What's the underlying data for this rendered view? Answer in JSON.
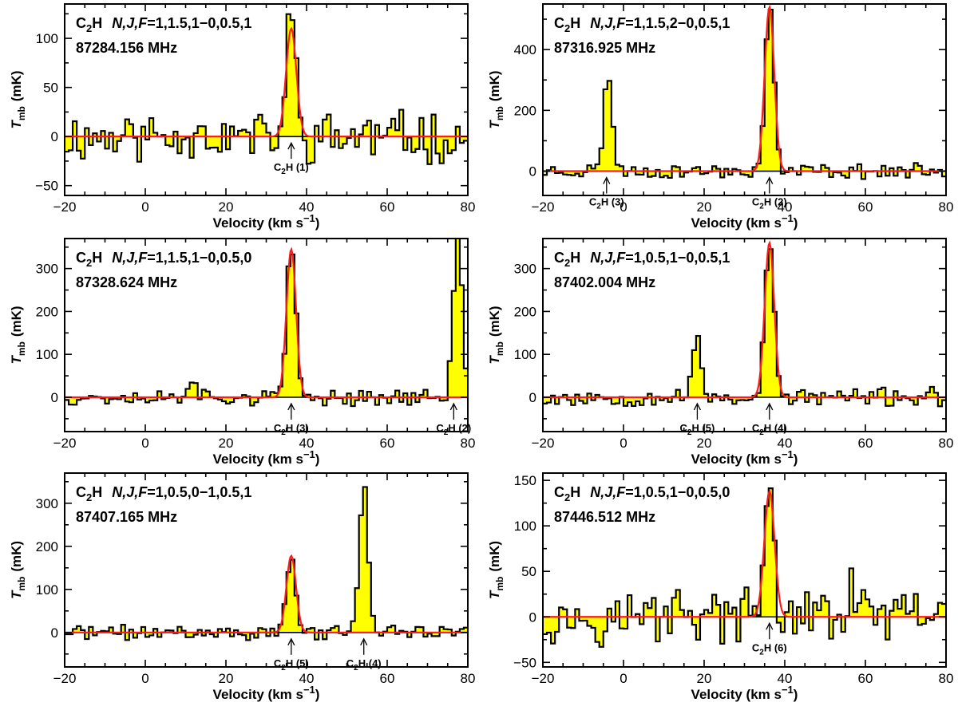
{
  "colors": {
    "fill": "#ffff00",
    "spectrum": "#000000",
    "fit": "#ff1a1a"
  },
  "chart_data": [
    {
      "type": "line",
      "title": "C2H N,J,F=1,1.5,1−0,0.5,1",
      "species": "C",
      "species_sub": "2",
      "species_tail": "H",
      "quantum_labels": "N,J,F",
      "transition": "=1,1.5,1−0,0.5,1",
      "frequency": "87284.156 MHz",
      "xlabel_main": "Velocity (km s",
      "xlabel_sup": "−1",
      "xlabel_close": ")",
      "ylabel_main": "T",
      "ylabel_sub": "mb",
      "ylabel_units": "(mK)",
      "xlim": [
        -20,
        80
      ],
      "ylim": [
        -60,
        135
      ],
      "xticks": [
        -20,
        0,
        20,
        40,
        60,
        80
      ],
      "xtick_labels": [
        "−20",
        "0",
        "20",
        "40",
        "60",
        "80"
      ],
      "yticks": [
        -50,
        0,
        50,
        100
      ],
      "ytick_labels": [
        "−50",
        "0",
        "50",
        "100"
      ],
      "channel_width": 1.0,
      "noise_amp": 22,
      "noise_seed": 11,
      "lines": [
        {
          "center": 36.2,
          "amp": 128,
          "fwhm": 2.6
        }
      ],
      "extra_features": [
        {
          "center": 13,
          "amp": 55,
          "fwhm": 0.9
        }
      ],
      "fit": {
        "center": 36.2,
        "amp": 110,
        "fwhm": 3.0
      },
      "annotations": [
        {
          "x": 36.2,
          "label_main": "C",
          "label_sub": "2",
          "label_rest": "H (1)"
        }
      ]
    },
    {
      "type": "line",
      "title": "C2H N,J,F=1,1.5,2−0,0.5,1",
      "species": "C",
      "species_sub": "2",
      "species_tail": "H",
      "quantum_labels": "N,J,F",
      "transition": "=1,1.5,2−0,0.5,1",
      "frequency": "87316.925 MHz",
      "xlabel_main": "Velocity (km s",
      "xlabel_sup": "−1",
      "xlabel_close": ")",
      "ylabel_main": "T",
      "ylabel_sub": "mb",
      "ylabel_units": "(mK)",
      "xlim": [
        -20,
        80
      ],
      "ylim": [
        -80,
        550
      ],
      "xticks": [
        -20,
        0,
        20,
        40,
        60,
        80
      ],
      "xtick_labels": [
        "−20",
        "0",
        "20",
        "40",
        "60",
        "80"
      ],
      "yticks": [
        0,
        200,
        400
      ],
      "ytick_labels": [
        "0",
        "200",
        "400"
      ],
      "channel_width": 1.0,
      "noise_amp": 20,
      "noise_seed": 23,
      "lines": [
        {
          "center": 36.2,
          "amp": 545,
          "fwhm": 2.6
        },
        {
          "center": -3.8,
          "amp": 310,
          "fwhm": 2.6
        }
      ],
      "extra_features": [],
      "fit": {
        "center": 36.2,
        "amp": 540,
        "fwhm": 2.8
      },
      "annotations": [
        {
          "x": -4.2,
          "label_main": "C",
          "label_sub": "2",
          "label_rest": "H (3)"
        },
        {
          "x": 36.2,
          "label_main": "C",
          "label_sub": "2",
          "label_rest": "H (2)"
        }
      ]
    },
    {
      "type": "line",
      "title": "C2H N,J,F=1,1.5,1−0,0.5,0",
      "species": "C",
      "species_sub": "2",
      "species_tail": "H",
      "quantum_labels": "N,J,F",
      "transition": "=1,1.5,1−0,0.5,0",
      "frequency": "87328.624 MHz",
      "xlabel_main": "Velocity (km s",
      "xlabel_sup": "−1",
      "xlabel_close": ")",
      "ylabel_main": "T",
      "ylabel_sub": "mb",
      "ylabel_units": "(mK)",
      "xlim": [
        -20,
        80
      ],
      "ylim": [
        -80,
        370
      ],
      "xticks": [
        -20,
        0,
        20,
        40,
        60,
        80
      ],
      "xtick_labels": [
        "−20",
        "0",
        "20",
        "40",
        "60",
        "80"
      ],
      "yticks": [
        0,
        100,
        200,
        300
      ],
      "ytick_labels": [
        "0",
        "100",
        "200",
        "300"
      ],
      "channel_width": 1.0,
      "noise_amp": 16,
      "noise_seed": 37,
      "lines": [
        {
          "center": 36.2,
          "amp": 350,
          "fwhm": 2.6
        },
        {
          "center": 77.5,
          "amp": 380,
          "fwhm": 2.6
        }
      ],
      "extra_features": [
        {
          "center": 11.5,
          "amp": 50,
          "fwhm": 2.5
        }
      ],
      "fit": {
        "center": 36.2,
        "amp": 345,
        "fwhm": 2.8
      },
      "annotations": [
        {
          "x": 36.2,
          "label_main": "C",
          "label_sub": "2",
          "label_rest": "H (3)"
        },
        {
          "x": 76.5,
          "label_main": "C",
          "label_sub": "2",
          "label_rest": "H (2)"
        }
      ]
    },
    {
      "type": "line",
      "title": "C2H N,J,F=1,0.5,1−0,0.5,1",
      "species": "C",
      "species_sub": "2",
      "species_tail": "H",
      "quantum_labels": "N,J,F",
      "transition": "=1,0.5,1−0,0.5,1",
      "frequency": "87402.004 MHz",
      "xlabel_main": "Velocity (km s",
      "xlabel_sup": "−1",
      "xlabel_close": ")",
      "ylabel_main": "T",
      "ylabel_sub": "mb",
      "ylabel_units": "(mK)",
      "xlim": [
        -20,
        80
      ],
      "ylim": [
        -80,
        370
      ],
      "xticks": [
        -20,
        0,
        20,
        40,
        60,
        80
      ],
      "xtick_labels": [
        "−20",
        "0",
        "20",
        "40",
        "60",
        "80"
      ],
      "yticks": [
        0,
        100,
        200,
        300
      ],
      "ytick_labels": [
        "0",
        "100",
        "200",
        "300"
      ],
      "channel_width": 1.0,
      "noise_amp": 18,
      "noise_seed": 53,
      "lines": [
        {
          "center": 36.2,
          "amp": 365,
          "fwhm": 2.6
        },
        {
          "center": 18.3,
          "amp": 140,
          "fwhm": 2.4
        }
      ],
      "extra_features": [],
      "fit": {
        "center": 36.2,
        "amp": 360,
        "fwhm": 2.8
      },
      "annotations": [
        {
          "x": 18.3,
          "label_main": "C",
          "label_sub": "2",
          "label_rest": "H (5)"
        },
        {
          "x": 36.2,
          "label_main": "C",
          "label_sub": "2",
          "label_rest": "H (4)"
        }
      ]
    },
    {
      "type": "line",
      "title": "C2H N,J,F=1,0.5,0−1,0.5,1",
      "species": "C",
      "species_sub": "2",
      "species_tail": "H",
      "quantum_labels": "N,J,F",
      "transition": "=1,0.5,0−1,0.5,1",
      "frequency": "87407.165 MHz",
      "xlabel_main": "Velocity (km s",
      "xlabel_sup": "−1",
      "xlabel_close": ")",
      "ylabel_main": "T",
      "ylabel_sub": "mb",
      "ylabel_units": "(mK)",
      "xlim": [
        -20,
        80
      ],
      "ylim": [
        -80,
        370
      ],
      "xticks": [
        -20,
        0,
        20,
        40,
        60,
        80
      ],
      "xtick_labels": [
        "−20",
        "0",
        "20",
        "40",
        "60",
        "80"
      ],
      "yticks": [
        0,
        100,
        200,
        300
      ],
      "ytick_labels": [
        "0",
        "100",
        "200",
        "300"
      ],
      "channel_width": 1.0,
      "noise_amp": 14,
      "noise_seed": 71,
      "lines": [
        {
          "center": 36.2,
          "amp": 175,
          "fwhm": 2.6
        },
        {
          "center": 54.2,
          "amp": 345,
          "fwhm": 2.6
        }
      ],
      "extra_features": [],
      "fit": {
        "center": 36.2,
        "amp": 178,
        "fwhm": 2.8
      },
      "annotations": [
        {
          "x": 36.2,
          "label_main": "C",
          "label_sub": "2",
          "label_rest": "H (5)"
        },
        {
          "x": 54.2,
          "label_main": "C",
          "label_sub": "2",
          "label_rest": "H (4)"
        }
      ]
    },
    {
      "type": "line",
      "title": "C2H N,J,F=1,0.5,1−0,0.5,0",
      "species": "C",
      "species_sub": "2",
      "species_tail": "H",
      "quantum_labels": "N,J,F",
      "transition": "=1,0.5,1−0,0.5,0",
      "frequency": "87446.512 MHz",
      "xlabel_main": "Velocity (km s",
      "xlabel_sup": "−1",
      "xlabel_close": ")",
      "ylabel_main": "T",
      "ylabel_sub": "mb",
      "ylabel_units": "(mK)",
      "xlim": [
        -20,
        80
      ],
      "ylim": [
        -55,
        158
      ],
      "xticks": [
        -20,
        0,
        20,
        40,
        60,
        80
      ],
      "xtick_labels": [
        "−20",
        "0",
        "20",
        "40",
        "60",
        "80"
      ],
      "yticks": [
        -50,
        0,
        50,
        100,
        150
      ],
      "ytick_labels": [
        "−50",
        "0",
        "50",
        "100",
        "150"
      ],
      "channel_width": 1.0,
      "noise_amp": 24,
      "noise_seed": 97,
      "lines": [
        {
          "center": 36.2,
          "amp": 147,
          "fwhm": 2.6
        },
        {
          "center": 56.3,
          "amp": 58,
          "fwhm": 1.2
        }
      ],
      "extra_features": [
        {
          "center": 14,
          "amp": 30,
          "fwhm": 2.0
        }
      ],
      "fit": {
        "center": 36.2,
        "amp": 138,
        "fwhm": 3.0
      },
      "annotations": [
        {
          "x": 36.2,
          "label_main": "C",
          "label_sub": "2",
          "label_rest": "H (6)"
        }
      ]
    }
  ]
}
